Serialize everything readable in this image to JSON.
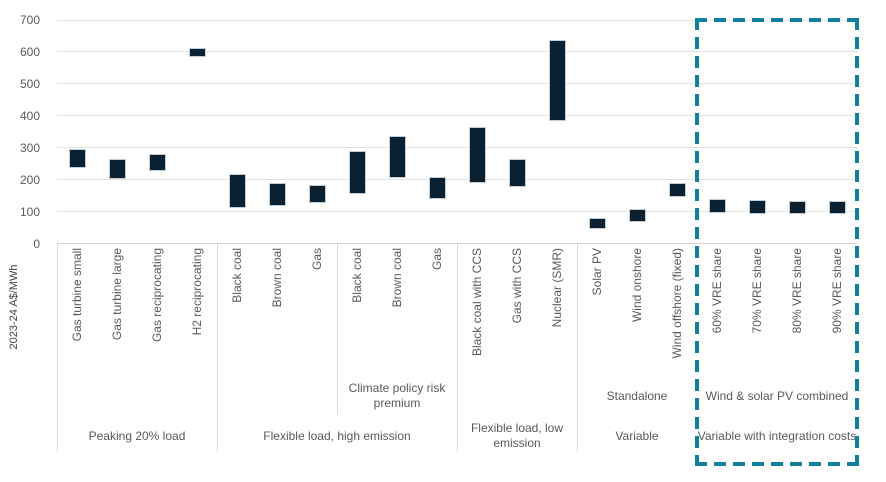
{
  "chart_data": {
    "type": "bar",
    "variant": "floating-range-columns",
    "ylabel": "2023-24 A$/MWh",
    "ylim": [
      0,
      700
    ],
    "yticks": [
      0,
      100,
      200,
      300,
      400,
      500,
      600,
      700
    ],
    "grid": true,
    "legend": "none",
    "bars": [
      {
        "label": "Gas turbine small",
        "low": 235,
        "high": 295
      },
      {
        "label": "Gas turbine large",
        "low": 203,
        "high": 266
      },
      {
        "label": "Gas reciprocating",
        "low": 228,
        "high": 280
      },
      {
        "label": "H2 reciprocating",
        "low": 585,
        "high": 612
      },
      {
        "label": "Black coal",
        "low": 110,
        "high": 218
      },
      {
        "label": "Brown coal",
        "low": 116,
        "high": 190
      },
      {
        "label": "Gas",
        "low": 128,
        "high": 183
      },
      {
        "label": "Black coal",
        "low": 156,
        "high": 291
      },
      {
        "label": "Brown coal",
        "low": 206,
        "high": 337
      },
      {
        "label": "Gas",
        "low": 139,
        "high": 207
      },
      {
        "label": "Black coal with CCS",
        "low": 191,
        "high": 365
      },
      {
        "label": "Gas with CCS",
        "low": 178,
        "high": 264
      },
      {
        "label": "Nuclear (SMR)",
        "low": 385,
        "high": 636
      },
      {
        "label": "Solar PV",
        "low": 46,
        "high": 80
      },
      {
        "label": "Wind onshore",
        "low": 66,
        "high": 108
      },
      {
        "label": "Wind offshore (fixed)",
        "low": 145,
        "high": 190
      },
      {
        "label": "60% VRE share",
        "low": 95,
        "high": 140
      },
      {
        "label": "70% VRE share",
        "low": 93,
        "high": 136
      },
      {
        "label": "80% VRE share",
        "low": 92,
        "high": 134
      },
      {
        "label": "90% VRE share",
        "low": 91,
        "high": 133
      }
    ],
    "subgroup_bands": [
      {
        "label": "Climate policy risk premium",
        "from": 7,
        "to": 9
      },
      {
        "label": "Standalone",
        "from": 13,
        "to": 15
      },
      {
        "label": "Wind & solar PV combined",
        "from": 16,
        "to": 19
      }
    ],
    "group_bands": [
      {
        "label": "Peaking 20% load",
        "from": 0,
        "to": 3
      },
      {
        "label": "Flexible load, high emission",
        "from": 4,
        "to": 9
      },
      {
        "label": "Flexible load, low emission",
        "from": 10,
        "to": 12
      },
      {
        "label": "Variable",
        "from": 13,
        "to": 15
      },
      {
        "label": "Variable with integration costs",
        "from": 16,
        "to": 19
      }
    ],
    "highlight_box": {
      "applies_to": "Variable with integration costs",
      "from": 16,
      "to": 19,
      "border_color": "#117f9e",
      "border_style": "dashed"
    },
    "colors": {
      "bar_fill": "#0b2132",
      "bar_border": "#c3cdd4",
      "gridline": "#e3e3e3",
      "axis_line": "#d2d2d2",
      "separator": "#d9d9d9",
      "text": "#595959",
      "highlight": "#117f9e"
    }
  }
}
